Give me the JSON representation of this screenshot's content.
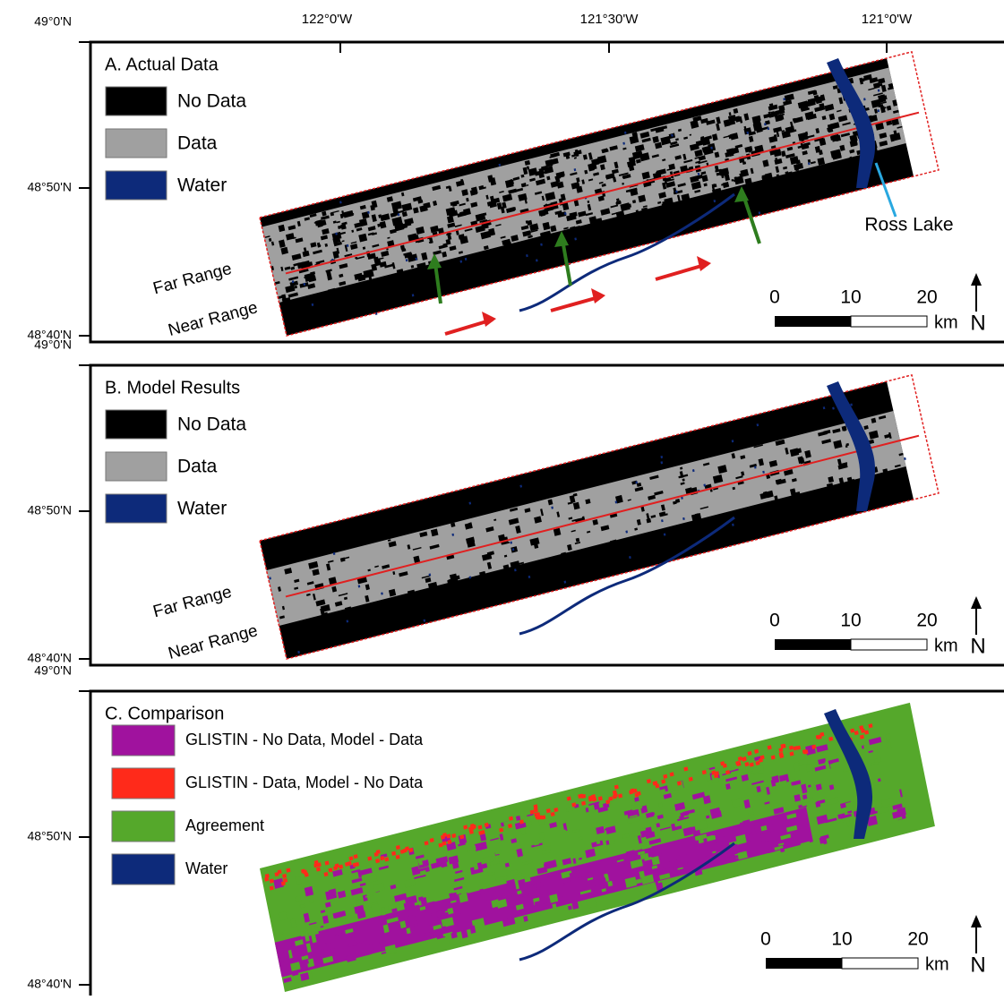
{
  "longitude_labels": [
    "122°0'W",
    "121°30'W",
    "121°0'W"
  ],
  "panels": [
    {
      "title": "A. Actual Data",
      "latitude_labels": [
        "49°0'N",
        "48°50'N",
        "48°40'N"
      ],
      "legend": [
        {
          "label": "No Data",
          "color": "#000000"
        },
        {
          "label": "Data",
          "color": "#a0a0a0"
        },
        {
          "label": "Water",
          "color": "#0d2a7a"
        }
      ],
      "range_labels": [
        "Far Range",
        "Near Range"
      ],
      "annotation": "Ross Lake",
      "scale": {
        "ticks": [
          "0",
          "10",
          "20"
        ],
        "unit": "km"
      },
      "north": "N"
    },
    {
      "title": "B. Model Results",
      "latitude_labels": [
        "49°0'N",
        "48°50'N",
        "48°40'N"
      ],
      "legend": [
        {
          "label": "No Data",
          "color": "#000000"
        },
        {
          "label": "Data",
          "color": "#a0a0a0"
        },
        {
          "label": "Water",
          "color": "#0d2a7a"
        }
      ],
      "range_labels": [
        "Far Range",
        "Near Range"
      ],
      "scale": {
        "ticks": [
          "0",
          "10",
          "20"
        ],
        "unit": "km"
      },
      "north": "N"
    },
    {
      "title": "C. Comparison",
      "latitude_labels": [
        "49°0'N",
        "48°50'N",
        "48°40'N"
      ],
      "legend": [
        {
          "label": "GLISTIN - No Data, Model - Data",
          "color": "#a0129e"
        },
        {
          "label": "GLISTIN - Data, Model - No Data",
          "color": "#ff2a1a"
        },
        {
          "label": "Agreement",
          "color": "#55a82b"
        },
        {
          "label": "Water",
          "color": "#0d2a7a"
        }
      ],
      "scale": {
        "ticks": [
          "0",
          "10",
          "20"
        ],
        "unit": "km"
      },
      "north": "N"
    }
  ]
}
